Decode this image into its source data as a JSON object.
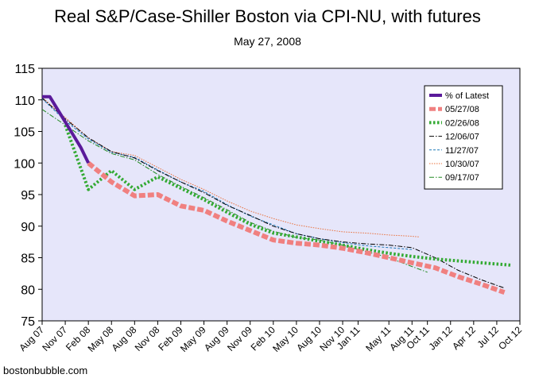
{
  "chart_data": {
    "type": "line",
    "title": "Real S&P/Case-Shiller Boston via CPI-NU, with futures",
    "subtitle": "May 27, 2008",
    "credit": "bostonbubble.com",
    "xlabel": "",
    "ylabel": "",
    "ylim": [
      75,
      115
    ],
    "yticks": [
      75,
      80,
      85,
      90,
      95,
      100,
      105,
      110,
      115
    ],
    "xlim": [
      "2007-08",
      "2012-10"
    ],
    "xticks": [
      {
        "date": "2007-08",
        "label": "Aug 07"
      },
      {
        "date": "2007-11",
        "label": "Nov 07"
      },
      {
        "date": "2008-02",
        "label": "Feb 08"
      },
      {
        "date": "2008-05",
        "label": "May 08"
      },
      {
        "date": "2008-08",
        "label": "Aug 08"
      },
      {
        "date": "2008-11",
        "label": "Nov 08"
      },
      {
        "date": "2009-02",
        "label": "Feb 09"
      },
      {
        "date": "2009-05",
        "label": "May 09"
      },
      {
        "date": "2009-08",
        "label": "Aug 09"
      },
      {
        "date": "2009-11",
        "label": "Nov 09"
      },
      {
        "date": "2010-02",
        "label": "Feb 10"
      },
      {
        "date": "2010-05",
        "label": "May 10"
      },
      {
        "date": "2010-08",
        "label": "Aug 10"
      },
      {
        "date": "2010-11",
        "label": "Nov 10"
      },
      {
        "date": "2011-01",
        "label": "Jan 11"
      },
      {
        "date": "2011-05",
        "label": "May 11"
      },
      {
        "date": "2011-08",
        "label": "Aug 11"
      },
      {
        "date": "2011-10",
        "label": "Oct 11"
      },
      {
        "date": "2012-01",
        "label": "Jan 12"
      },
      {
        "date": "2012-04",
        "label": "Apr 12"
      },
      {
        "date": "2012-07",
        "label": "Jul 12"
      },
      {
        "date": "2012-10",
        "label": "Oct 12"
      }
    ],
    "grid": false,
    "legend_position": "top-right",
    "plot_background": "#e6e6fa",
    "series": [
      {
        "name": "% of Latest",
        "color": "#5a1a9a",
        "style": "solid-thick",
        "points": [
          [
            "2007-08",
            110.5
          ],
          [
            "2007-09",
            110.5
          ],
          [
            "2007-10",
            108.5
          ],
          [
            "2007-11",
            106.5
          ],
          [
            "2007-12",
            104.5
          ],
          [
            "2008-01",
            102.5
          ],
          [
            "2008-02",
            100.0
          ]
        ]
      },
      {
        "name": "05/27/08",
        "color": "#f08080",
        "style": "dash-thick",
        "points": [
          [
            "2008-02",
            100.0
          ],
          [
            "2008-05",
            97.0
          ],
          [
            "2008-08",
            94.8
          ],
          [
            "2008-11",
            95.0
          ],
          [
            "2009-02",
            93.2
          ],
          [
            "2009-05",
            92.5
          ],
          [
            "2009-08",
            90.8
          ],
          [
            "2009-11",
            89.3
          ],
          [
            "2010-02",
            87.8
          ],
          [
            "2010-05",
            87.3
          ],
          [
            "2010-08",
            87.0
          ],
          [
            "2010-11",
            86.5
          ],
          [
            "2011-02",
            85.8
          ],
          [
            "2011-05",
            85.0
          ],
          [
            "2011-08",
            84.2
          ],
          [
            "2011-11",
            83.4
          ],
          [
            "2012-02",
            82.0
          ],
          [
            "2012-05",
            80.8
          ],
          [
            "2012-08",
            79.5
          ]
        ]
      },
      {
        "name": "02/26/08",
        "color": "#33aa33",
        "style": "dot-thick",
        "points": [
          [
            "2007-11",
            106.0
          ],
          [
            "2008-02",
            95.8
          ],
          [
            "2008-05",
            98.8
          ],
          [
            "2008-08",
            95.8
          ],
          [
            "2008-11",
            97.8
          ],
          [
            "2009-02",
            96.0
          ],
          [
            "2009-05",
            94.2
          ],
          [
            "2009-08",
            92.2
          ],
          [
            "2009-11",
            90.3
          ],
          [
            "2010-02",
            88.9
          ],
          [
            "2010-05",
            88.3
          ],
          [
            "2010-08",
            87.6
          ],
          [
            "2010-11",
            87.0
          ],
          [
            "2011-02",
            86.3
          ],
          [
            "2011-05",
            85.7
          ],
          [
            "2011-08",
            85.2
          ],
          [
            "2011-11",
            84.8
          ],
          [
            "2012-02",
            84.5
          ],
          [
            "2012-05",
            84.2
          ],
          [
            "2012-08",
            83.9
          ],
          [
            "2012-09",
            83.8
          ]
        ]
      },
      {
        "name": "12/06/07",
        "color": "#000000",
        "style": "dashdot-thin",
        "points": [
          [
            "2007-08",
            110.3
          ],
          [
            "2007-11",
            107.0
          ],
          [
            "2008-02",
            104.0
          ],
          [
            "2008-05",
            101.8
          ],
          [
            "2008-08",
            100.8
          ],
          [
            "2008-11",
            98.8
          ],
          [
            "2009-02",
            97.0
          ],
          [
            "2009-05",
            95.3
          ],
          [
            "2009-08",
            93.3
          ],
          [
            "2009-11",
            91.7
          ],
          [
            "2010-02",
            90.0
          ],
          [
            "2010-05",
            88.8
          ],
          [
            "2010-08",
            88.0
          ],
          [
            "2010-11",
            87.5
          ],
          [
            "2011-02",
            87.2
          ],
          [
            "2011-05",
            87.0
          ],
          [
            "2011-08",
            86.6
          ],
          [
            "2011-11",
            85.0
          ],
          [
            "2012-02",
            83.0
          ],
          [
            "2012-05",
            81.5
          ],
          [
            "2012-08",
            80.2
          ]
        ]
      },
      {
        "name": "11/27/07",
        "color": "#1e7ab8",
        "style": "dash-thin",
        "points": [
          [
            "2007-08",
            110.2
          ],
          [
            "2007-11",
            106.7
          ],
          [
            "2008-02",
            103.8
          ],
          [
            "2008-05",
            101.7
          ],
          [
            "2008-08",
            100.9
          ],
          [
            "2008-11",
            98.9
          ],
          [
            "2009-02",
            97.0
          ],
          [
            "2009-05",
            95.5
          ],
          [
            "2009-08",
            93.4
          ],
          [
            "2009-11",
            91.6
          ],
          [
            "2010-02",
            90.2
          ],
          [
            "2010-05",
            88.8
          ],
          [
            "2010-08",
            88.0
          ],
          [
            "2010-11",
            87.4
          ],
          [
            "2011-02",
            86.9
          ],
          [
            "2011-05",
            86.6
          ],
          [
            "2011-08",
            86.3
          ]
        ]
      },
      {
        "name": "10/30/07",
        "color": "#e9703a",
        "style": "dot-thin",
        "points": [
          [
            "2007-08",
            110.4
          ],
          [
            "2007-11",
            107.2
          ],
          [
            "2008-02",
            104.0
          ],
          [
            "2008-05",
            101.8
          ],
          [
            "2008-08",
            101.2
          ],
          [
            "2008-11",
            99.3
          ],
          [
            "2009-02",
            97.4
          ],
          [
            "2009-05",
            95.8
          ],
          [
            "2009-08",
            94.0
          ],
          [
            "2009-11",
            92.4
          ],
          [
            "2010-02",
            91.2
          ],
          [
            "2010-05",
            90.2
          ],
          [
            "2010-08",
            89.6
          ],
          [
            "2010-11",
            89.1
          ],
          [
            "2011-02",
            88.9
          ],
          [
            "2011-05",
            88.6
          ],
          [
            "2011-08",
            88.4
          ],
          [
            "2011-09",
            88.3
          ]
        ]
      },
      {
        "name": "09/17/07",
        "color": "#228b22",
        "style": "dashdot-thin",
        "points": [
          [
            "2007-08",
            108.5
          ],
          [
            "2007-11",
            106.0
          ],
          [
            "2008-02",
            103.5
          ],
          [
            "2008-05",
            101.5
          ],
          [
            "2008-08",
            100.5
          ],
          [
            "2008-11",
            98.2
          ],
          [
            "2009-02",
            96.3
          ],
          [
            "2009-05",
            94.5
          ],
          [
            "2009-08",
            92.6
          ],
          [
            "2009-11",
            90.6
          ],
          [
            "2010-02",
            89.2
          ],
          [
            "2010-05",
            88.2
          ],
          [
            "2010-08",
            87.8
          ],
          [
            "2010-11",
            87.0
          ],
          [
            "2011-02",
            86.0
          ],
          [
            "2011-05",
            85.0
          ],
          [
            "2011-08",
            83.6
          ],
          [
            "2011-10",
            82.7
          ]
        ]
      }
    ]
  }
}
